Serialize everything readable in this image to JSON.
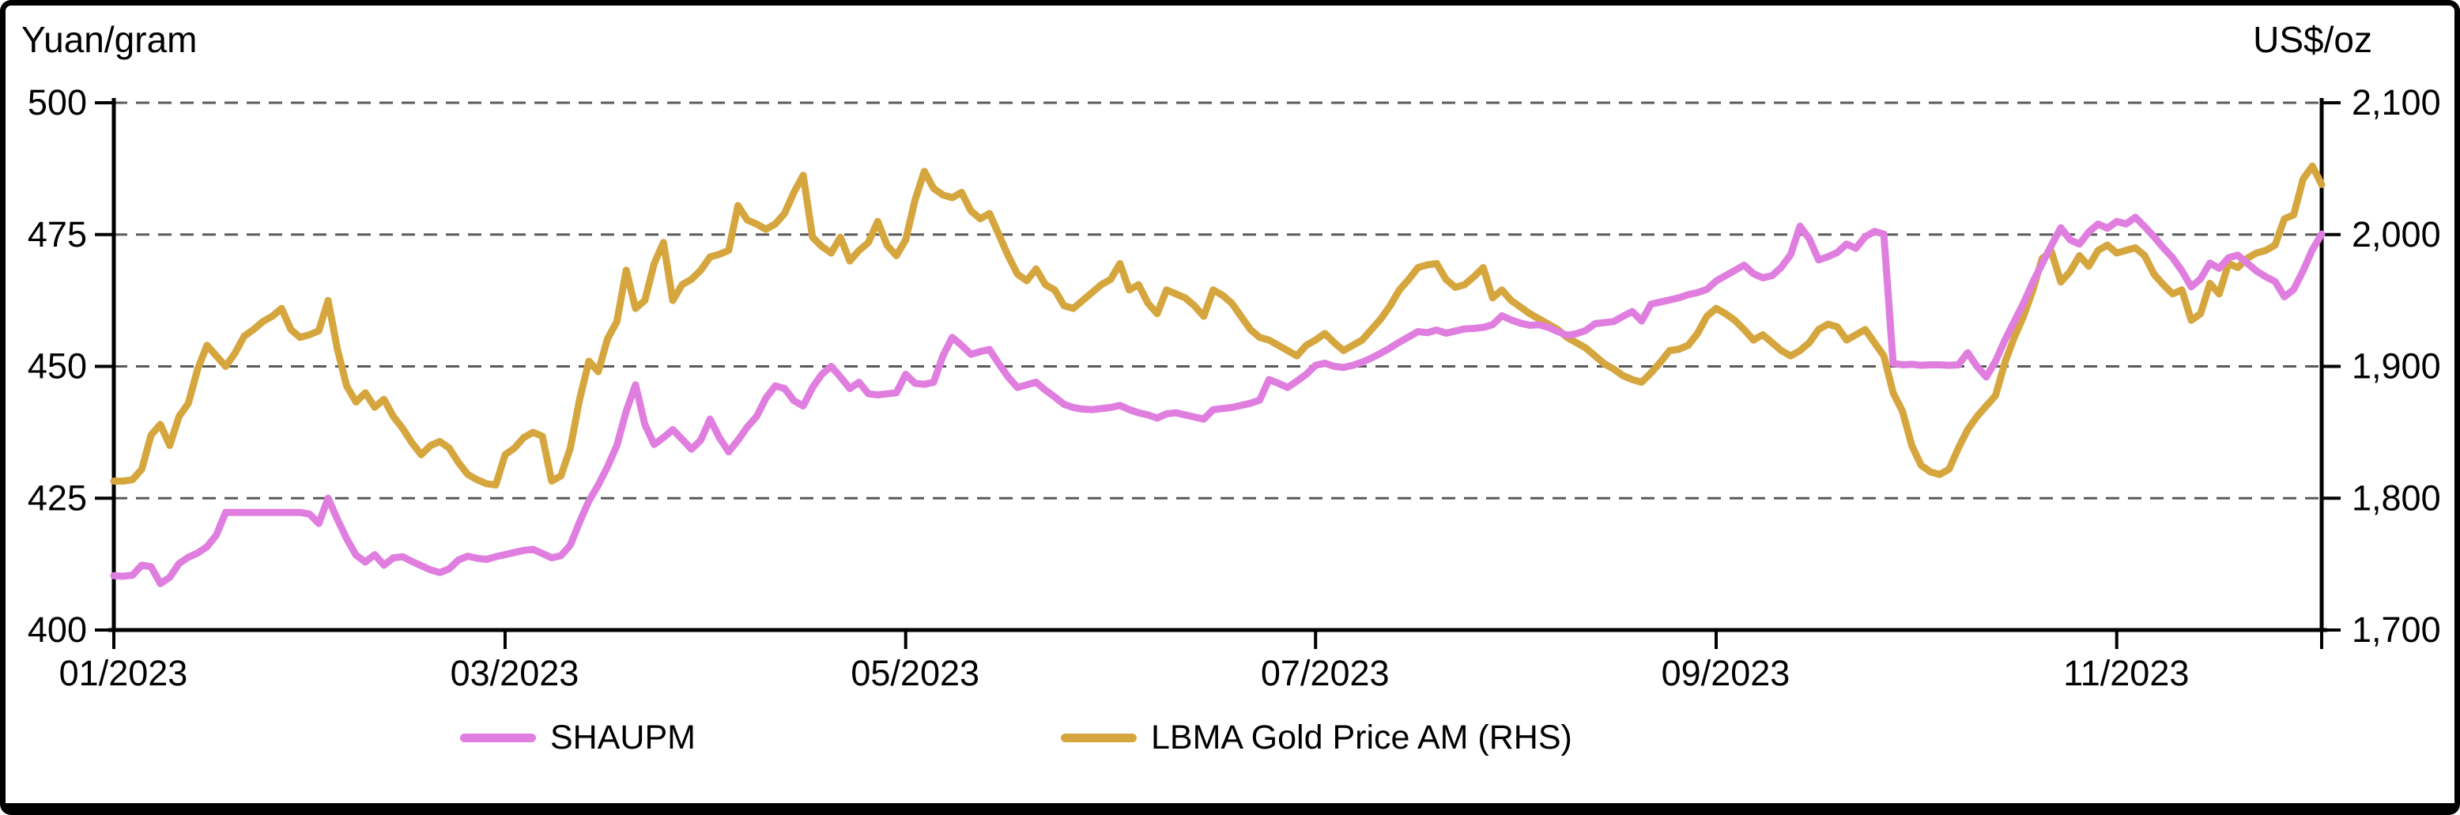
{
  "chart_data": {
    "type": "line",
    "title": "",
    "left_axis": {
      "label": "Yuan/gram",
      "min": 400,
      "max": 500,
      "tick_values": [
        500,
        475,
        450,
        425,
        400
      ],
      "tick_labels": [
        "500",
        "475",
        "450",
        "425",
        "400"
      ]
    },
    "right_axis": {
      "label": "US$/oz",
      "min": 1700,
      "max": 2100,
      "tick_values": [
        2100,
        2000,
        1900,
        1800,
        1700
      ],
      "tick_labels": [
        "2,100",
        "2,000",
        "1,900",
        "1,800",
        "1,700"
      ]
    },
    "x_tick_labels": [
      "01/2023",
      "03/2023",
      "05/2023",
      "07/2023",
      "09/2023",
      "11/2023"
    ],
    "grid": {
      "horizontal": "dashed",
      "color": "#5A5A5A"
    },
    "legend_position": "bottom",
    "series": [
      {
        "name": "SHAUPM",
        "axis": "left",
        "unit": "Yuan/gram",
        "color": "#E07EE0"
      },
      {
        "name": "LBMA Gold Price AM (RHS)",
        "axis": "right",
        "unit": "US$/oz",
        "color": "#D6A63E"
      }
    ],
    "dates": [
      "01/02",
      "01/03",
      "01/04",
      "01/05",
      "01/06",
      "01/09",
      "01/10",
      "01/11",
      "01/12",
      "01/13",
      "01/16",
      "01/17",
      "01/18",
      "01/19",
      "01/20",
      "01/23",
      "01/24",
      "01/25",
      "01/26",
      "01/27",
      "01/30",
      "01/31",
      "02/01",
      "02/02",
      "02/03",
      "02/06",
      "02/07",
      "02/08",
      "02/09",
      "02/10",
      "02/13",
      "02/14",
      "02/15",
      "02/16",
      "02/17",
      "02/20",
      "02/21",
      "02/22",
      "02/23",
      "02/24",
      "02/27",
      "02/28",
      "03/01",
      "03/02",
      "03/03",
      "03/06",
      "03/07",
      "03/08",
      "03/09",
      "03/10",
      "03/13",
      "03/14",
      "03/15",
      "03/16",
      "03/17",
      "03/20",
      "03/21",
      "03/22",
      "03/23",
      "03/24",
      "03/27",
      "03/28",
      "03/29",
      "03/30",
      "03/31",
      "04/03",
      "04/04",
      "04/05",
      "04/06",
      "04/07",
      "04/10",
      "04/11",
      "04/12",
      "04/13",
      "04/14",
      "04/17",
      "04/18",
      "04/19",
      "04/20",
      "04/21",
      "04/24",
      "04/25",
      "04/26",
      "04/27",
      "04/28",
      "05/02",
      "05/03",
      "05/04",
      "05/05",
      "05/08",
      "05/09",
      "05/10",
      "05/11",
      "05/12",
      "05/15",
      "05/16",
      "05/17",
      "05/18",
      "05/19",
      "05/22",
      "05/23",
      "05/24",
      "05/25",
      "05/26",
      "05/29",
      "05/30",
      "05/31",
      "06/01",
      "06/02",
      "06/05",
      "06/06",
      "06/07",
      "06/08",
      "06/09",
      "06/12",
      "06/13",
      "06/14",
      "06/15",
      "06/16",
      "06/19",
      "06/20",
      "06/21",
      "06/22",
      "06/23",
      "06/26",
      "06/27",
      "06/28",
      "06/29",
      "06/30",
      "07/03",
      "07/04",
      "07/05",
      "07/06",
      "07/07",
      "07/10",
      "07/11",
      "07/12",
      "07/13",
      "07/14",
      "07/17",
      "07/18",
      "07/19",
      "07/20",
      "07/21",
      "07/24",
      "07/25",
      "07/26",
      "07/27",
      "07/28",
      "07/31",
      "08/01",
      "08/02",
      "08/03",
      "08/04",
      "08/07",
      "08/08",
      "08/09",
      "08/10",
      "08/11",
      "08/14",
      "08/15",
      "08/16",
      "08/17",
      "08/18",
      "08/21",
      "08/22",
      "08/23",
      "08/24",
      "08/25",
      "08/28",
      "08/29",
      "08/30",
      "09/01",
      "09/04",
      "09/05",
      "09/06",
      "09/07",
      "09/08",
      "09/11",
      "09/12",
      "09/13",
      "09/14",
      "09/15",
      "09/18",
      "09/19",
      "09/20",
      "09/21",
      "09/22",
      "09/25",
      "09/26",
      "09/27",
      "09/28",
      "09/29",
      "10/02",
      "10/03",
      "10/04",
      "10/05",
      "10/06",
      "10/09",
      "10/10",
      "10/11",
      "10/12",
      "10/13",
      "10/16",
      "10/17",
      "10/18",
      "10/19",
      "10/20",
      "10/23",
      "10/24",
      "10/25",
      "10/26",
      "10/27",
      "10/30",
      "10/31",
      "11/01",
      "11/02",
      "11/03",
      "11/06",
      "11/07",
      "11/08",
      "11/09",
      "11/10",
      "11/13",
      "11/14",
      "11/15",
      "11/16",
      "11/17",
      "11/20",
      "11/21",
      "11/22",
      "11/23",
      "11/24",
      "11/27",
      "11/28",
      "11/29",
      "11/30",
      "12/01"
    ],
    "shaupm": [
      410.3,
      410.2,
      410.4,
      412.3,
      412.0,
      408.8,
      410.0,
      412.6,
      413.8,
      414.6,
      415.8,
      418.0,
      422.3,
      422.3,
      422.3,
      422.3,
      422.3,
      422.3,
      422.3,
      422.3,
      422.3,
      422.0,
      420.2,
      425.0,
      421.0,
      417.3,
      414.2,
      412.9,
      414.3,
      412.3,
      413.7,
      413.9,
      413.0,
      412.2,
      411.4,
      410.9,
      411.6,
      413.3,
      414.0,
      413.6,
      413.4,
      413.9,
      414.3,
      414.7,
      415.1,
      415.3,
      414.5,
      413.7,
      414.1,
      416.1,
      420.5,
      424.5,
      427.5,
      431.0,
      435.0,
      441.5,
      446.5,
      439.0,
      435.2,
      436.5,
      438.0,
      436.2,
      434.3,
      436.0,
      440.0,
      436.5,
      433.8,
      436.0,
      438.5,
      440.5,
      444.0,
      446.3,
      445.8,
      443.5,
      442.5,
      446.0,
      448.5,
      450.0,
      448.0,
      445.8,
      447.0,
      444.8,
      444.6,
      444.8,
      445.0,
      448.5,
      446.8,
      446.6,
      447.0,
      452.0,
      455.5,
      454.0,
      452.3,
      452.8,
      453.2,
      450.5,
      448.0,
      446.0,
      446.5,
      447.0,
      445.5,
      444.2,
      442.8,
      442.2,
      441.9,
      441.8,
      442.0,
      442.2,
      442.6,
      441.8,
      441.2,
      440.8,
      440.2,
      441.0,
      441.2,
      440.8,
      440.4,
      440.0,
      441.8,
      442.0,
      442.2,
      442.6,
      443.0,
      443.6,
      447.5,
      446.8,
      446.0,
      447.2,
      448.5,
      450.2,
      450.6,
      450.0,
      449.8,
      450.2,
      450.8,
      451.6,
      452.5,
      453.5,
      454.6,
      455.6,
      456.6,
      456.4,
      456.9,
      456.3,
      456.7,
      457.1,
      457.2,
      457.4,
      457.9,
      459.6,
      458.8,
      458.2,
      457.8,
      457.9,
      457.4,
      456.6,
      455.9,
      456.2,
      456.8,
      458.1,
      458.3,
      458.5,
      459.5,
      460.4,
      458.6,
      461.8,
      462.2,
      462.6,
      463.0,
      463.6,
      464.0,
      464.6,
      466.2,
      467.2,
      468.2,
      469.2,
      467.6,
      466.8,
      467.2,
      468.8,
      471.2,
      476.6,
      474.2,
      470.2,
      470.8,
      471.6,
      473.2,
      472.4,
      474.6,
      475.6,
      475.1,
      450.6,
      450.3,
      450.4,
      450.2,
      450.3,
      450.3,
      450.2,
      450.3,
      452.6,
      450.0,
      448.0,
      451.0,
      455.0,
      458.5,
      462.0,
      466.0,
      469.5,
      473.0,
      476.3,
      474.0,
      473.2,
      475.5,
      477.0,
      476.2,
      477.5,
      477.0,
      478.3,
      476.5,
      474.6,
      472.5,
      470.6,
      468.1,
      465.1,
      466.6,
      469.6,
      468.6,
      470.6,
      471.1,
      469.6,
      468.1,
      467.0,
      466.1,
      463.2,
      464.6,
      468.1,
      472.1,
      475.1
    ],
    "lbma": [
      1813,
      1813,
      1814,
      1822,
      1848,
      1856,
      1840,
      1862,
      1872,
      1898,
      1916,
      1908,
      1900,
      1910,
      1923,
      1928,
      1934,
      1938,
      1944,
      1928,
      1922,
      1924,
      1927,
      1950,
      1913,
      1885,
      1873,
      1880,
      1869,
      1875,
      1862,
      1853,
      1842,
      1833,
      1840,
      1843,
      1838,
      1827,
      1818,
      1814,
      1811,
      1810,
      1833,
      1838,
      1846,
      1850,
      1847,
      1813,
      1817,
      1838,
      1875,
      1904,
      1896,
      1921,
      1934,
      1973,
      1944,
      1950,
      1978,
      1994,
      1950,
      1962,
      1966,
      1973,
      1983,
      1985,
      1988,
      2022,
      2011,
      2008,
      2004,
      2008,
      2016,
      2032,
      2045,
      1998,
      1991,
      1986,
      1998,
      1980,
      1988,
      1994,
      2010,
      1992,
      1984,
      1996,
      2026,
      2048,
      2035,
      2030,
      2028,
      2032,
      2018,
      2012,
      2016,
      2000,
      1984,
      1970,
      1965,
      1974,
      1962,
      1958,
      1946,
      1944,
      1950,
      1956,
      1962,
      1966,
      1978,
      1958,
      1962,
      1948,
      1940,
      1958,
      1955,
      1952,
      1946,
      1938,
      1958,
      1954,
      1948,
      1938,
      1928,
      1922,
      1920,
      1916,
      1912,
      1908,
      1916,
      1920,
      1925,
      1918,
      1912,
      1916,
      1920,
      1928,
      1936,
      1946,
      1958,
      1966,
      1975,
      1977,
      1978,
      1966,
      1960,
      1962,
      1968,
      1975,
      1952,
      1958,
      1950,
      1945,
      1940,
      1936,
      1932,
      1928,
      1922,
      1918,
      1914,
      1908,
      1902,
      1898,
      1893,
      1890,
      1888,
      1895,
      1903,
      1912,
      1913,
      1916,
      1925,
      1938,
      1944,
      1940,
      1935,
      1928,
      1920,
      1924,
      1918,
      1912,
      1908,
      1912,
      1918,
      1928,
      1932,
      1930,
      1920,
      1924,
      1928,
      1918,
      1908,
      1880,
      1866,
      1840,
      1825,
      1820,
      1818,
      1822,
      1838,
      1852,
      1862,
      1870,
      1878,
      1903,
      1922,
      1938,
      1958,
      1982,
      1987,
      1964,
      1972,
      1984,
      1976,
      1988,
      1992,
      1986,
      1988,
      1990,
      1984,
      1970,
      1962,
      1955,
      1958,
      1935,
      1940,
      1963,
      1955,
      1978,
      1975,
      1982,
      1986,
      1988,
      1992,
      2012,
      2015,
      2042,
      2052,
      2038
    ]
  }
}
